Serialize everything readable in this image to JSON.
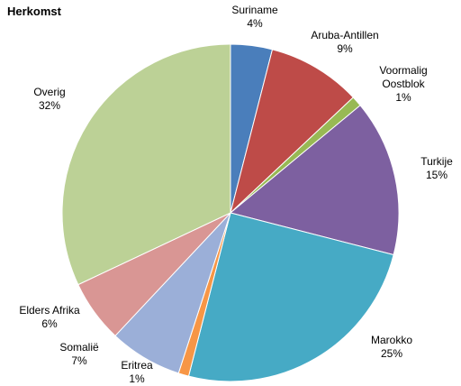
{
  "chart_data": {
    "type": "pie",
    "title": "Herkomst",
    "categories": [
      "Suriname",
      "Aruba-Antillen",
      "Voormalig Oostblok",
      "Turkije",
      "Marokko",
      "Eritrea",
      "Somalië",
      "Elders Afrika",
      "Overig"
    ],
    "values": [
      4,
      9,
      1,
      15,
      25,
      1,
      7,
      6,
      32
    ],
    "value_labels": [
      "4%",
      "9%",
      "1%",
      "15%",
      "25%",
      "1%",
      "7%",
      "6%",
      "32%"
    ],
    "colors": [
      "#4a7ebb",
      "#be4b48",
      "#98b954",
      "#7d60a0",
      "#46aac5",
      "#f79646",
      "#9bafd8",
      "#d99694",
      "#bcd196"
    ]
  }
}
